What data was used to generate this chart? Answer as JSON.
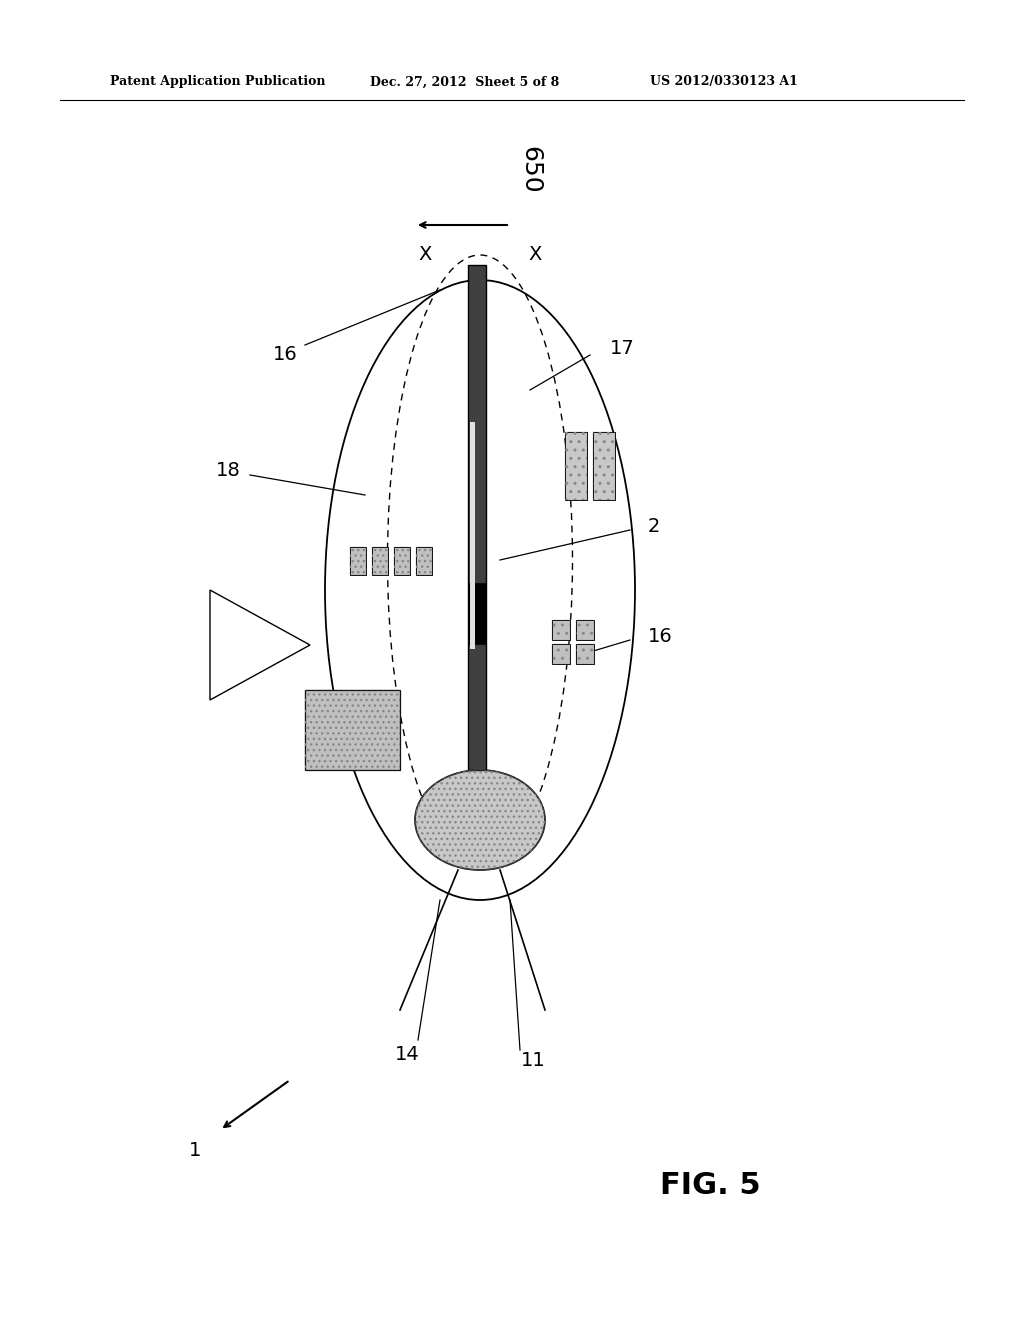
{
  "bg_color": "#ffffff",
  "title_line1": "Patent Application Publication",
  "title_line2": "Dec. 27, 2012  Sheet 5 of 8",
  "title_line3": "US 2012/0330123 A1",
  "fig_label": "FIG. 5",
  "label_650": "650",
  "label_16a": "16",
  "label_17": "17",
  "label_18": "18",
  "label_2": "2",
  "label_16b": "16",
  "label_14": "14",
  "label_11": "11",
  "label_1": "1"
}
